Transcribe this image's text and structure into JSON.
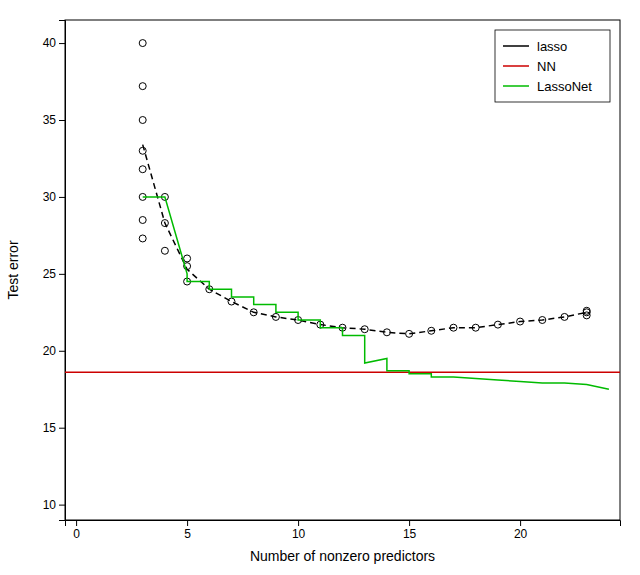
{
  "chart_data": {
    "type": "line",
    "xlabel": "Number of nonzero predictors",
    "ylabel": "Test error",
    "xlim": [
      -0.5,
      24.5
    ],
    "ylim": [
      9,
      41.5
    ],
    "xticks": [
      0,
      5,
      10,
      15,
      20
    ],
    "yticks": [
      10,
      15,
      20,
      25,
      30,
      35,
      40
    ],
    "grid": false,
    "legend": "upper right",
    "series": [
      {
        "type": "scatter",
        "marker": "open-circle",
        "color": "#000000",
        "x": [
          3,
          3,
          3,
          3,
          3,
          3,
          3,
          3,
          4,
          4,
          4,
          5,
          5,
          5,
          6,
          7,
          8,
          9,
          10,
          11,
          12,
          13,
          14,
          15,
          16,
          17,
          18,
          19,
          20,
          21,
          22,
          23,
          23,
          23
        ],
        "values": [
          40.0,
          37.2,
          35.0,
          33.0,
          31.8,
          30.0,
          28.5,
          27.3,
          30.0,
          28.3,
          26.5,
          26.0,
          25.5,
          24.5,
          24.0,
          23.2,
          22.5,
          22.2,
          22.0,
          21.7,
          21.5,
          21.4,
          21.2,
          21.1,
          21.3,
          21.5,
          21.5,
          21.7,
          21.9,
          22.0,
          22.2,
          22.3,
          22.5,
          22.6
        ]
      },
      {
        "name": "lasso",
        "type": "line",
        "line_style": "dashed",
        "color": "#000000",
        "x": [
          3,
          4,
          5,
          6,
          7,
          8,
          9,
          10,
          11,
          12,
          13,
          14,
          15,
          16,
          17,
          18,
          19,
          20,
          21,
          22,
          23
        ],
        "values": [
          33.4,
          28.3,
          25.3,
          24.0,
          23.2,
          22.5,
          22.2,
          22.0,
          21.7,
          21.5,
          21.4,
          21.2,
          21.1,
          21.3,
          21.5,
          21.5,
          21.7,
          21.9,
          22.0,
          22.2,
          22.5
        ]
      },
      {
        "name": "NN",
        "type": "hline",
        "color": "#cc0000",
        "values": [
          18.6
        ]
      },
      {
        "name": "LassoNet",
        "type": "line",
        "color": "#00bb00",
        "x": [
          3,
          4,
          5,
          5,
          6,
          6,
          7,
          7,
          8,
          8,
          9,
          9,
          10,
          10,
          11,
          11,
          12,
          12,
          13,
          13,
          13,
          14,
          14,
          15,
          15,
          16,
          16,
          17,
          18,
          19,
          20,
          21,
          22,
          23,
          24
        ],
        "values": [
          30.0,
          30.0,
          25.0,
          24.5,
          24.5,
          24.0,
          24.0,
          23.5,
          23.5,
          23.0,
          23.0,
          22.5,
          22.5,
          22.0,
          22.0,
          21.5,
          21.5,
          21.0,
          21.0,
          19.5,
          19.2,
          19.5,
          18.7,
          18.7,
          18.5,
          18.5,
          18.3,
          18.3,
          18.2,
          18.1,
          18.0,
          17.9,
          17.9,
          17.8,
          17.5
        ]
      }
    ]
  }
}
